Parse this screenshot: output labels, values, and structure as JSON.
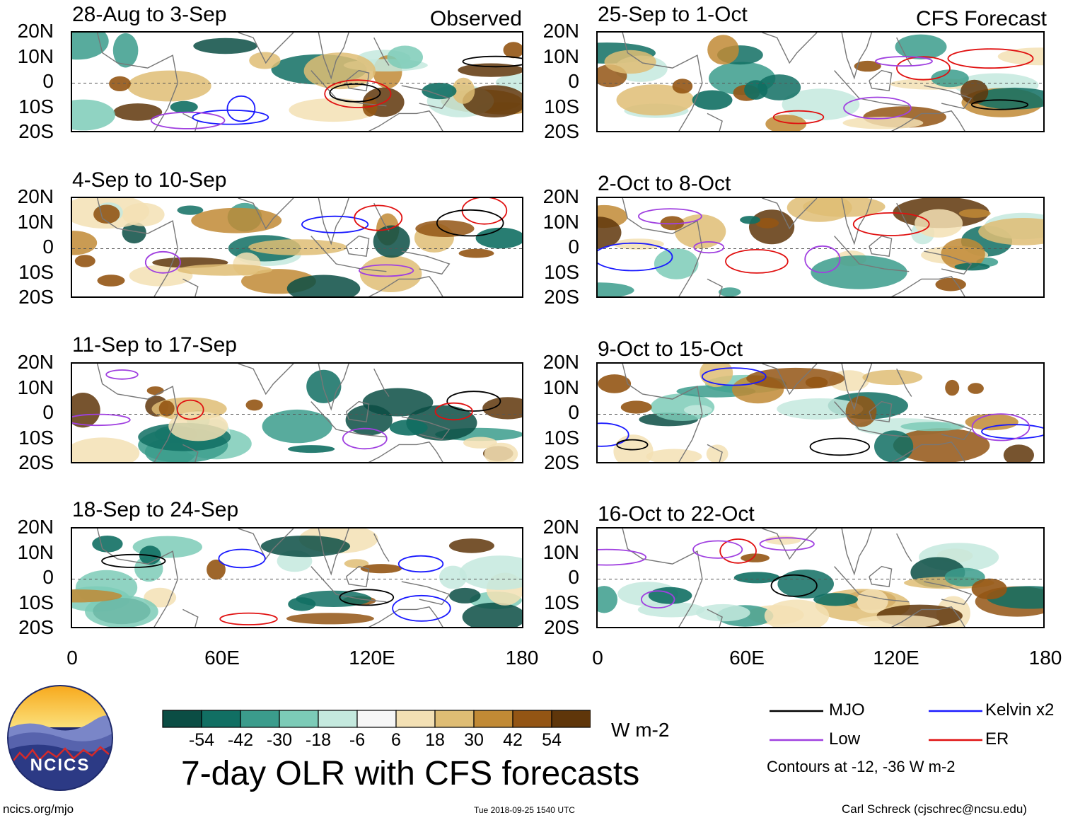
{
  "chart_data": {
    "type": "heatmap",
    "title": "7-day OLR with CFS forecasts",
    "colorbar": {
      "unit": "W m-2",
      "ticks": [
        "-54",
        "-42",
        "-30",
        "-18",
        "-6",
        "6",
        "18",
        "30",
        "42",
        "54"
      ],
      "colors": [
        "#0b4d44",
        "#116f63",
        "#3b9c8c",
        "#7ccbb7",
        "#c4e9de",
        "#f6f6f6",
        "#f3e0b4",
        "#dfbd74",
        "#c18a35",
        "#935514",
        "#5f360a"
      ]
    },
    "x_axis": {
      "ticks": [
        "0",
        "60E",
        "120E",
        "180"
      ],
      "range": [
        0,
        180
      ]
    },
    "y_axis": {
      "ticks": [
        "20N",
        "10N",
        "0",
        "10S",
        "20S"
      ],
      "range": [
        -20,
        20
      ]
    },
    "columns": [
      {
        "label": "Observed",
        "panels": [
          "28-Aug to 3-Sep",
          "4-Sep to 10-Sep",
          "11-Sep to 17-Sep",
          "18-Sep to 24-Sep"
        ]
      },
      {
        "label": "CFS Forecast",
        "panels": [
          "25-Sep to 1-Oct",
          "2-Oct to 8-Oct",
          "9-Oct to 15-Oct",
          "16-Oct to 22-Oct"
        ]
      }
    ],
    "contours": {
      "legend": [
        {
          "name": "MJO",
          "color": "#000000"
        },
        {
          "name": "Kelvin x2",
          "color": "#1a1aff"
        },
        {
          "name": "Low",
          "color": "#a040e0"
        },
        {
          "name": "ER",
          "color": "#e01010"
        }
      ],
      "note": "Contours at -12, -36 W m-2"
    }
  },
  "logo": {
    "text": "NCICS"
  },
  "footer": {
    "left": "ncics.org/mjo",
    "center": "Tue 2018-09-25 1540 UTC",
    "right": "Carl Schreck (cjschrec@ncsu.edu)"
  }
}
